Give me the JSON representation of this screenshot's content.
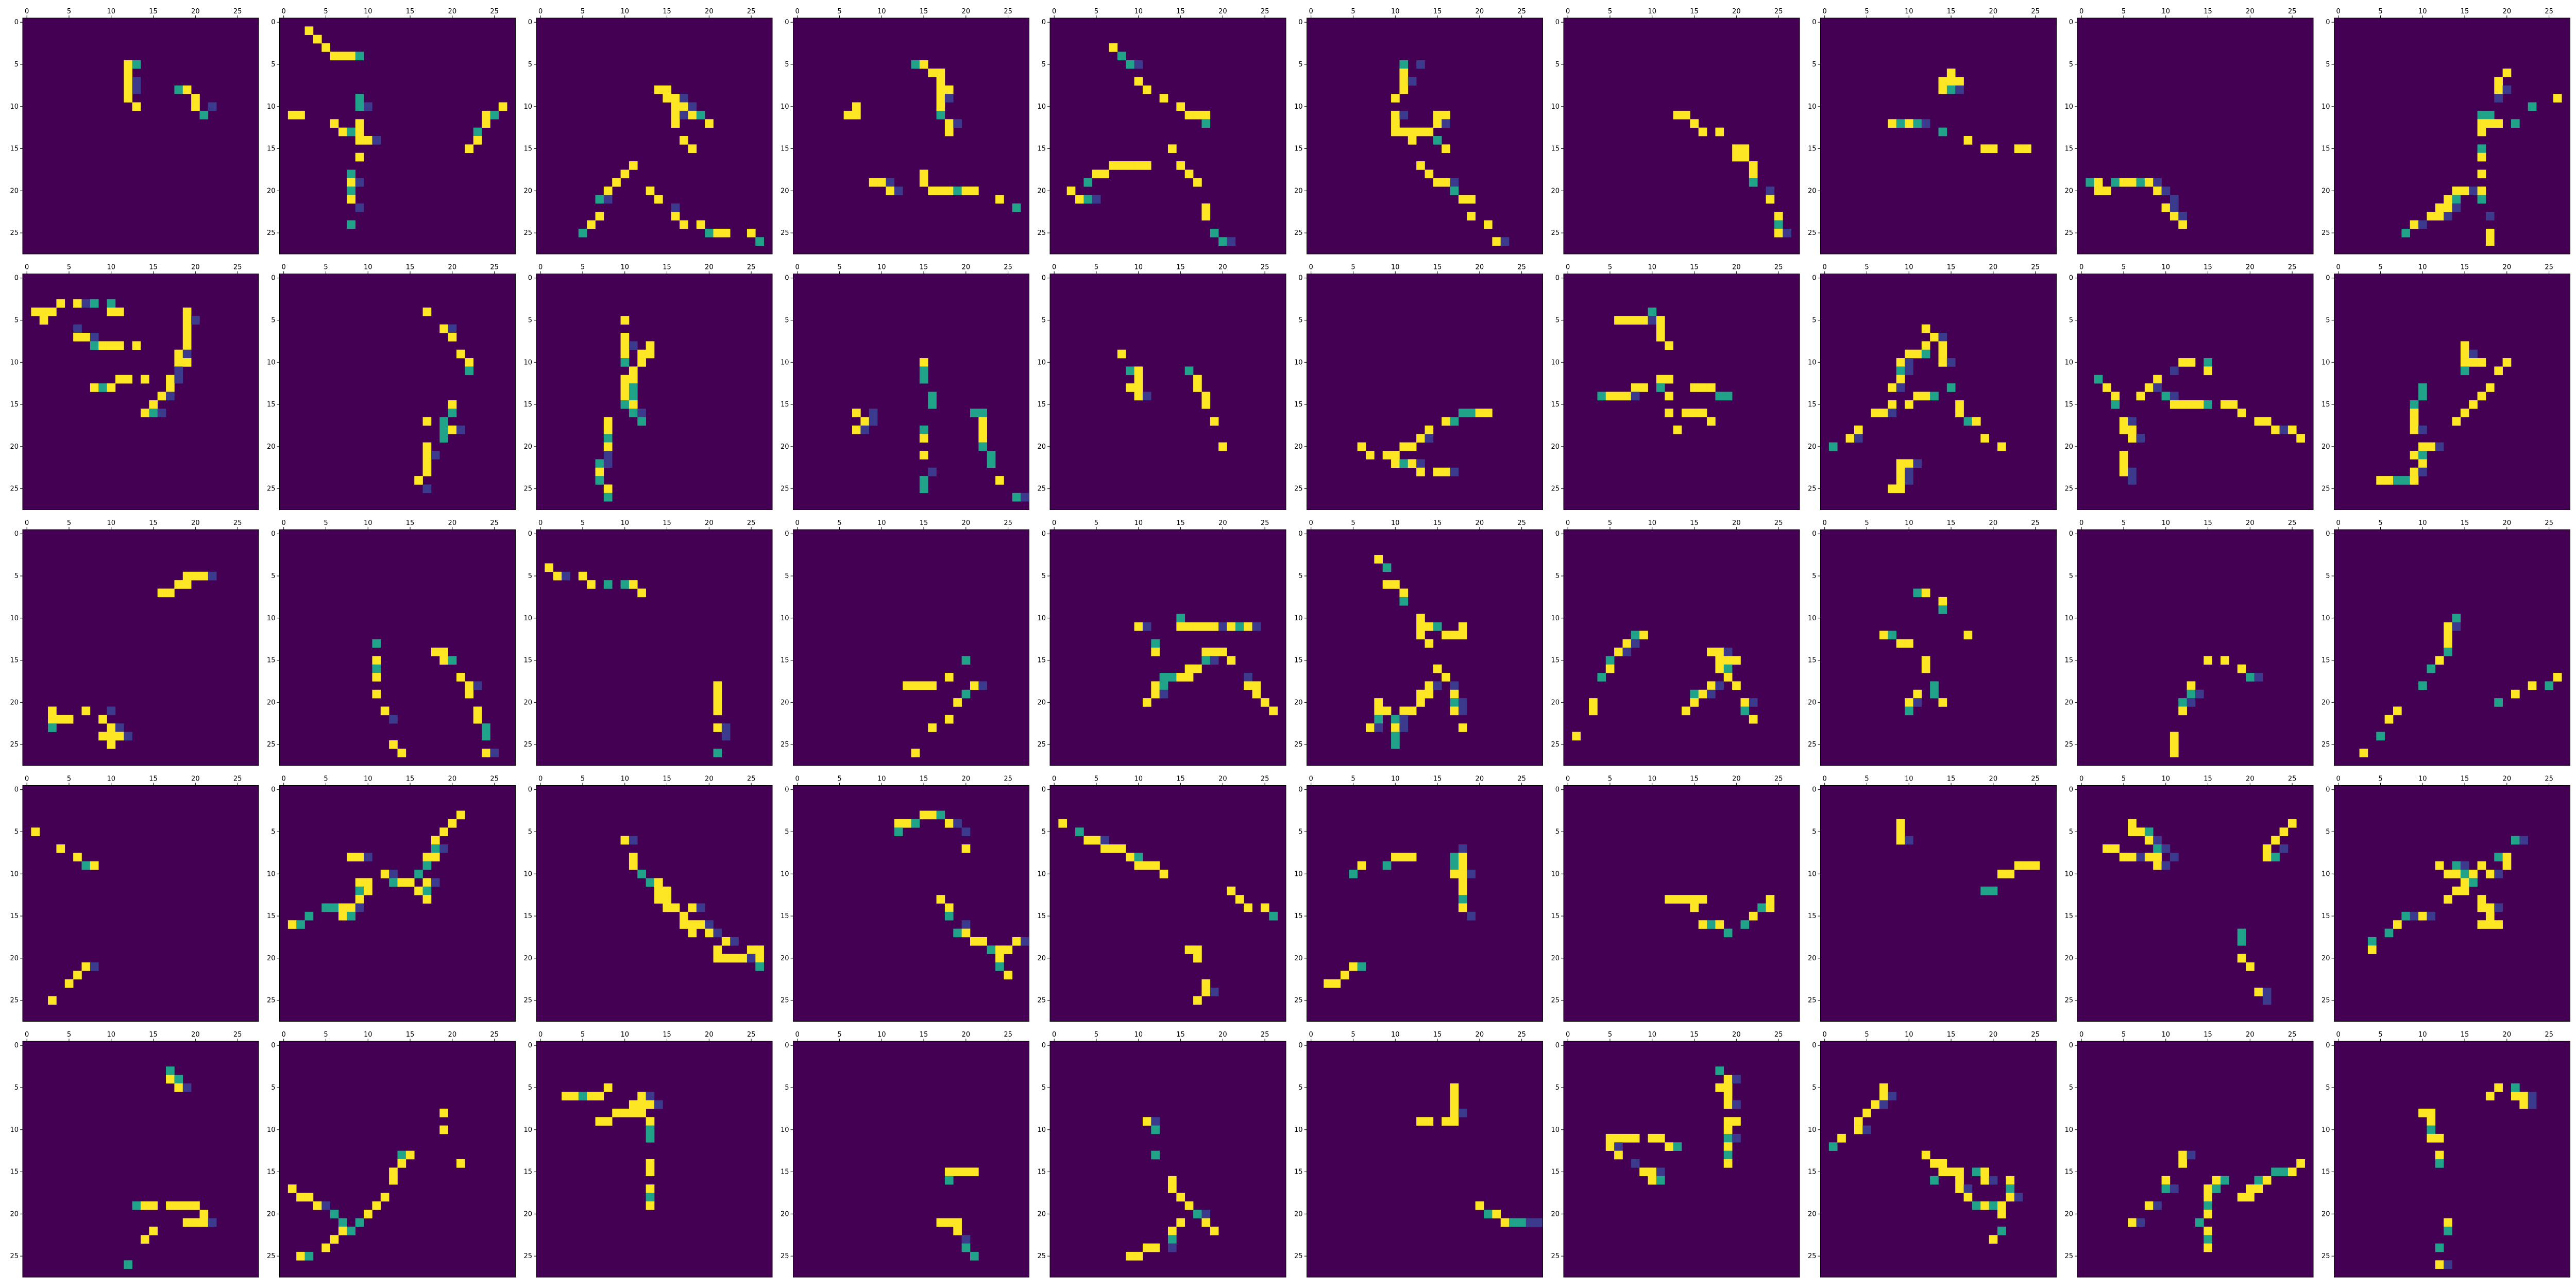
{
  "figure": {
    "rows": 5,
    "cols": 10,
    "background": "#ffffff"
  },
  "chart_data": {
    "type": "heatmap",
    "panel_count": 50,
    "grid_shape": [
      28,
      28
    ],
    "colormap": "viridis",
    "colors": {
      "low": "#440154",
      "mid_low": "#3b3a8c",
      "mid": "#21a38a",
      "high": "#fde725"
    },
    "xlim": [
      0,
      27
    ],
    "ylim": [
      27,
      0
    ],
    "xticks": [
      "0",
      "5",
      "10",
      "15",
      "20",
      "25"
    ],
    "yticks": [
      "0",
      "5",
      "10",
      "15",
      "20",
      "25"
    ],
    "title": "",
    "xlabel": "",
    "ylabel": "",
    "grid": false,
    "legend": "none",
    "note": "Each panel is a 28x28 activation map of a handwritten digit; pixel values are not printed, panels are rendered as sparse yellow/teal strokes on a dark purple background."
  }
}
